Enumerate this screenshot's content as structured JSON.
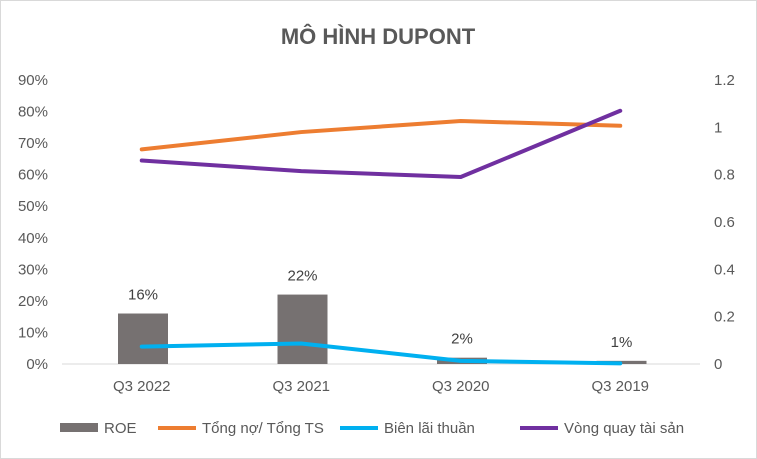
{
  "chart_data": {
    "type": "bar",
    "title": "MÔ HÌNH DUPONT",
    "categories": [
      "Q3 2022",
      "Q3 2021",
      "Q3 2020",
      "Q3 2019"
    ],
    "y_left": {
      "ticks": [
        "0%",
        "10%",
        "20%",
        "30%",
        "40%",
        "50%",
        "60%",
        "70%",
        "80%",
        "90%"
      ],
      "range": [
        0,
        90
      ]
    },
    "y_right": {
      "ticks": [
        "0",
        "0.2",
        "0.4",
        "0.6",
        "0.8",
        "1",
        "1.2"
      ],
      "range": [
        0,
        1.2
      ]
    },
    "grid": false,
    "legend_position": "bottom",
    "series": [
      {
        "name": "ROE",
        "type": "bar",
        "axis": "left",
        "color": "#767171",
        "values": [
          16,
          22,
          2,
          1
        ],
        "labels": [
          "16%",
          "22%",
          "2%",
          "1%"
        ]
      },
      {
        "name": "Tổng nợ/ Tổng TS",
        "type": "line",
        "axis": "left",
        "color": "#ED7D31",
        "values": [
          68,
          73.5,
          77,
          75.5
        ]
      },
      {
        "name": "Biên lãi thuần",
        "type": "line",
        "axis": "left",
        "color": "#00B0F0",
        "values": [
          5.5,
          6.5,
          1,
          0.2
        ]
      },
      {
        "name": "Vòng quay tài sản",
        "type": "line",
        "axis": "right",
        "color": "#7030A0",
        "values": [
          0.86,
          0.815,
          0.79,
          1.07
        ]
      }
    ]
  }
}
